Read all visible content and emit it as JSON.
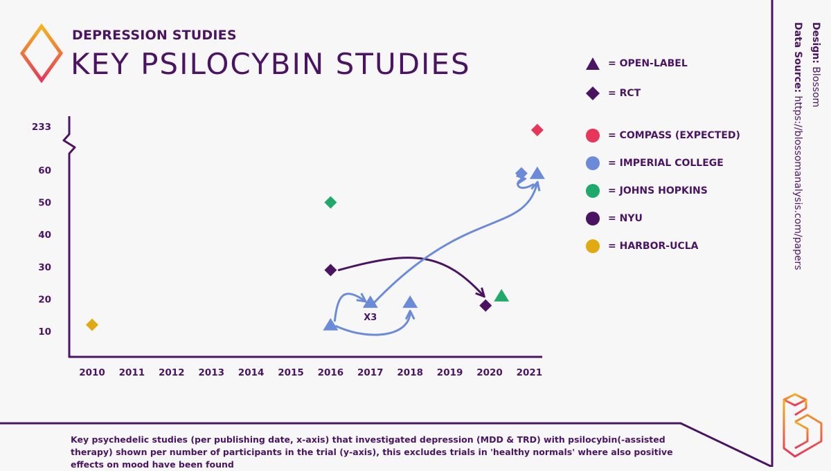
{
  "header": {
    "subtitle": "DEPRESSION STUDIES",
    "title": "KEY PSILOCYBIN STUDIES"
  },
  "legend": {
    "shapes": [
      {
        "shape": "triangle",
        "label": "= OPEN-LABEL"
      },
      {
        "shape": "diamond",
        "label": "= RCT"
      }
    ],
    "institutions": [
      {
        "label": "= COMPASS (EXPECTED)",
        "color": "#e8365a"
      },
      {
        "label": "= IMPERIAL COLLEGE",
        "color": "#6b8bd9"
      },
      {
        "label": "= JOHNS HOPKINS",
        "color": "#1faa6b"
      },
      {
        "label": "= NYU",
        "color": "#4a1463"
      },
      {
        "label": "= HARBOR-UCLA",
        "color": "#e0ab12"
      }
    ]
  },
  "credits": {
    "design_label": "Design:",
    "design_value": "Blossom",
    "source_label": "Data Source:",
    "source_value": "https://blossomanalysis.com/papers"
  },
  "footnote": "Key psychedelic studies (per publishing date, x-axis) that investigated depression (MDD & TRD) with psilocybin(-assisted therapy) shown per number of participants in the trial (y-axis), this excludes trials in 'healthy normals' where also positive effects on mood have been found",
  "colors": {
    "primary": "#4a1463",
    "compass": "#e8365a",
    "imperial": "#6b8bd9",
    "hopkins": "#1faa6b",
    "nyu": "#4a1463",
    "harbor": "#e0ab12",
    "background": "#f7f7f8"
  },
  "chart_data": {
    "type": "scatter",
    "x_categories": [
      "2010",
      "2011",
      "2012",
      "2013",
      "2014",
      "2015",
      "2016",
      "2017",
      "2018",
      "2019",
      "2020",
      "2021"
    ],
    "y_ticks": [
      "10",
      "20",
      "30",
      "40",
      "50",
      "60",
      "233"
    ],
    "y_axis_break": "between 60 and 233",
    "points": [
      {
        "year": 2010.0,
        "participants": 12,
        "shape": "diamond",
        "group": "harbor"
      },
      {
        "year": 2016.0,
        "participants": 50,
        "shape": "diamond",
        "group": "hopkins"
      },
      {
        "year": 2016.0,
        "participants": 29,
        "shape": "diamond",
        "group": "nyu"
      },
      {
        "year": 2016.0,
        "participants": 12,
        "shape": "triangle",
        "group": "imperial"
      },
      {
        "year": 2017.0,
        "participants": 19,
        "shape": "triangle",
        "group": "imperial",
        "label": "X3"
      },
      {
        "year": 2018.0,
        "participants": 19,
        "shape": "triangle",
        "group": "imperial"
      },
      {
        "year": 2019.9,
        "participants": 18,
        "shape": "diamond",
        "group": "nyu"
      },
      {
        "year": 2020.3,
        "participants": 21,
        "shape": "triangle",
        "group": "hopkins"
      },
      {
        "year": 2020.8,
        "participants": 59,
        "shape": "diamond",
        "group": "imperial"
      },
      {
        "year": 2021.2,
        "participants": 59,
        "shape": "triangle",
        "group": "imperial"
      },
      {
        "year": 2021.2,
        "participants": 233,
        "shape": "diamond",
        "group": "compass"
      }
    ],
    "follow_up_arrows": [
      {
        "group": "nyu",
        "from": [
          2016.0,
          29
        ],
        "to": [
          2019.9,
          18
        ]
      },
      {
        "group": "imperial",
        "from": [
          2016.0,
          12
        ],
        "to": [
          2017.0,
          19
        ]
      },
      {
        "group": "imperial",
        "from": [
          2016.0,
          12
        ],
        "to": [
          2018.0,
          19
        ]
      },
      {
        "group": "imperial",
        "from": [
          2017.0,
          19
        ],
        "to": [
          2021.2,
          59
        ]
      },
      {
        "group": "imperial",
        "from": [
          2021.2,
          59
        ],
        "to": [
          2020.8,
          59
        ]
      }
    ],
    "grid": false,
    "legend_position": "right"
  }
}
